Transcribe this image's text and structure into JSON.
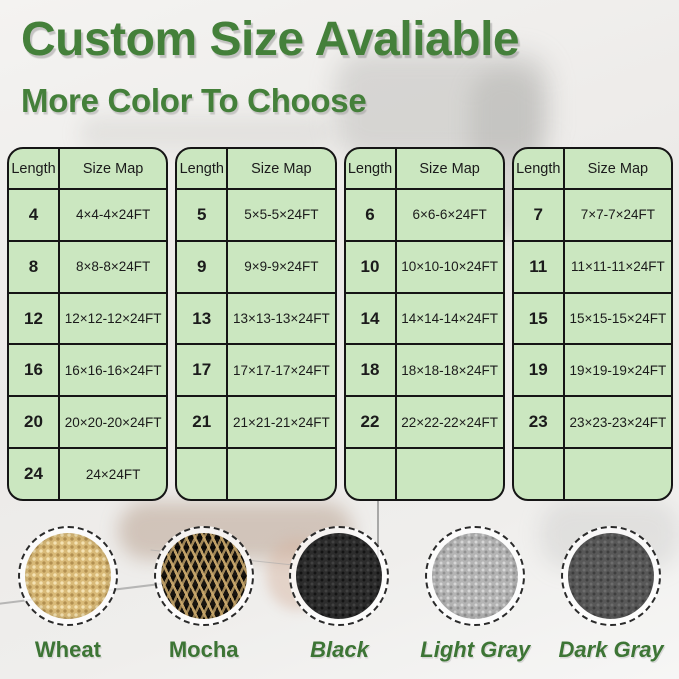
{
  "page": {
    "title": "Custom Size Avaliable",
    "subtitle": "More Color To Choose"
  },
  "colors": {
    "accent_green": "#44803a",
    "label_green": "#3d7535",
    "table_fill": "#cbe7c0",
    "table_border": "#151515",
    "cell_text": "#1b1b1b"
  },
  "tables": [
    {
      "id": "size-table-1",
      "headers": [
        "Length",
        "Size Map"
      ],
      "rows": [
        [
          "4",
          "4×4-4×24FT"
        ],
        [
          "8",
          "8×8-8×24FT"
        ],
        [
          "12",
          "12×12-12×24FT"
        ],
        [
          "16",
          "16×16-16×24FT"
        ],
        [
          "20",
          "20×20-20×24FT"
        ],
        [
          "24",
          "24×24FT"
        ]
      ]
    },
    {
      "id": "size-table-2",
      "headers": [
        "Length",
        "Size Map"
      ],
      "rows": [
        [
          "5",
          "5×5-5×24FT"
        ],
        [
          "9",
          "9×9-9×24FT"
        ],
        [
          "13",
          "13×13-13×24FT"
        ],
        [
          "17",
          "17×17-17×24FT"
        ],
        [
          "21",
          "21×21-21×24FT"
        ],
        [
          "",
          ""
        ]
      ]
    },
    {
      "id": "size-table-3",
      "headers": [
        "Length",
        "Size Map"
      ],
      "rows": [
        [
          "6",
          "6×6-6×24FT"
        ],
        [
          "10",
          "10×10-10×24FT"
        ],
        [
          "14",
          "14×14-14×24FT"
        ],
        [
          "18",
          "18×18-18×24FT"
        ],
        [
          "22",
          "22×22-22×24FT"
        ],
        [
          "",
          ""
        ]
      ]
    },
    {
      "id": "size-table-4",
      "headers": [
        "Length",
        "Size Map"
      ],
      "rows": [
        [
          "7",
          "7×7-7×24FT"
        ],
        [
          "11",
          "11×11-11×24FT"
        ],
        [
          "15",
          "15×15-15×24FT"
        ],
        [
          "19",
          "19×19-19×24FT"
        ],
        [
          "23",
          "23×23-23×24FT"
        ],
        [
          "",
          ""
        ]
      ]
    }
  ],
  "swatches": [
    {
      "key": "wheat",
      "label": "Wheat",
      "italic": false,
      "base_color": "#d9ba78"
    },
    {
      "key": "mocha",
      "label": "Mocha",
      "italic": false,
      "base_color": "#191510"
    },
    {
      "key": "black",
      "label": "Black",
      "italic": true,
      "base_color": "#2c2c2c"
    },
    {
      "key": "light-gray",
      "label": "Light Gray",
      "italic": true,
      "base_color": "#b4b4b4"
    },
    {
      "key": "dark-gray",
      "label": "Dark Gray",
      "italic": true,
      "base_color": "#585858"
    }
  ]
}
